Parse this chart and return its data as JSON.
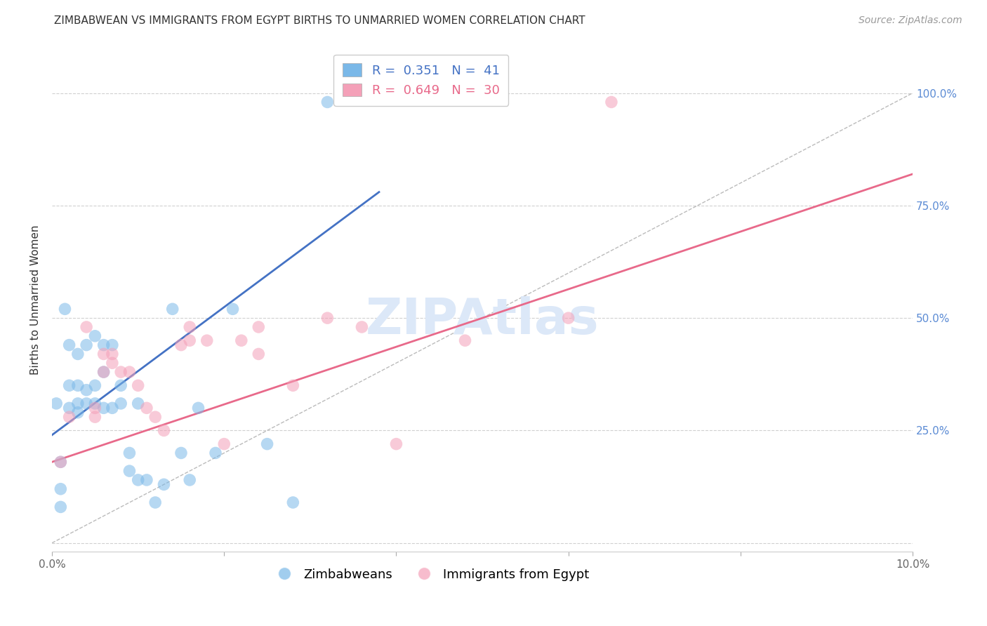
{
  "title": "ZIMBABWEAN VS IMMIGRANTS FROM EGYPT BIRTHS TO UNMARRIED WOMEN CORRELATION CHART",
  "source": "Source: ZipAtlas.com",
  "ylabel": "Births to Unmarried Women",
  "xlim": [
    0.0,
    0.1
  ],
  "ylim": [
    -0.02,
    1.1
  ],
  "yticks": [
    0.0,
    0.25,
    0.5,
    0.75,
    1.0
  ],
  "ytick_labels": [
    "",
    "25.0%",
    "50.0%",
    "75.0%",
    "100.0%"
  ],
  "xticks": [
    0.0,
    0.02,
    0.04,
    0.06,
    0.08,
    0.1
  ],
  "xtick_labels": [
    "0.0%",
    "",
    "",
    "",
    "",
    "10.0%"
  ],
  "series1_label": "Zimbabweans",
  "series2_label": "Immigrants from Egypt",
  "blue_color": "#7ab8e8",
  "pink_color": "#f4a0b8",
  "blue_line_color": "#4472c4",
  "pink_line_color": "#e8698a",
  "ref_line_color": "#bbbbbb",
  "watermark": "ZIPAtlas",
  "watermark_color": "#dce8f8",
  "blue_scatter_x": [
    0.0005,
    0.001,
    0.001,
    0.001,
    0.0015,
    0.002,
    0.002,
    0.002,
    0.003,
    0.003,
    0.003,
    0.003,
    0.004,
    0.004,
    0.004,
    0.005,
    0.005,
    0.005,
    0.006,
    0.006,
    0.006,
    0.007,
    0.007,
    0.008,
    0.008,
    0.009,
    0.009,
    0.01,
    0.01,
    0.011,
    0.012,
    0.013,
    0.014,
    0.015,
    0.016,
    0.017,
    0.019,
    0.021,
    0.025,
    0.028,
    0.032
  ],
  "blue_scatter_y": [
    0.31,
    0.18,
    0.08,
    0.12,
    0.52,
    0.3,
    0.35,
    0.44,
    0.29,
    0.31,
    0.35,
    0.42,
    0.31,
    0.34,
    0.44,
    0.31,
    0.35,
    0.46,
    0.3,
    0.38,
    0.44,
    0.3,
    0.44,
    0.31,
    0.35,
    0.16,
    0.2,
    0.31,
    0.14,
    0.14,
    0.09,
    0.13,
    0.52,
    0.2,
    0.14,
    0.3,
    0.2,
    0.52,
    0.22,
    0.09,
    0.98
  ],
  "pink_scatter_x": [
    0.001,
    0.002,
    0.004,
    0.005,
    0.005,
    0.006,
    0.006,
    0.007,
    0.007,
    0.008,
    0.009,
    0.01,
    0.011,
    0.012,
    0.013,
    0.015,
    0.016,
    0.016,
    0.018,
    0.02,
    0.022,
    0.024,
    0.024,
    0.028,
    0.032,
    0.036,
    0.04,
    0.048,
    0.06,
    0.065
  ],
  "pink_scatter_y": [
    0.18,
    0.28,
    0.48,
    0.28,
    0.3,
    0.38,
    0.42,
    0.4,
    0.42,
    0.38,
    0.38,
    0.35,
    0.3,
    0.28,
    0.25,
    0.44,
    0.45,
    0.48,
    0.45,
    0.22,
    0.45,
    0.48,
    0.42,
    0.35,
    0.5,
    0.48,
    0.22,
    0.45,
    0.5,
    0.98
  ],
  "blue_line_x": [
    0.0,
    0.038
  ],
  "blue_line_y": [
    0.24,
    0.78
  ],
  "pink_line_x": [
    0.0,
    0.1
  ],
  "pink_line_y": [
    0.18,
    0.82
  ],
  "ref_line_x": [
    0.0,
    0.1
  ],
  "ref_line_y": [
    0.0,
    1.0
  ],
  "title_fontsize": 11,
  "source_fontsize": 10,
  "axis_label_fontsize": 11,
  "tick_fontsize": 11,
  "legend_fontsize": 13,
  "watermark_fontsize": 52,
  "scatter_size": 160,
  "scatter_alpha": 0.55
}
